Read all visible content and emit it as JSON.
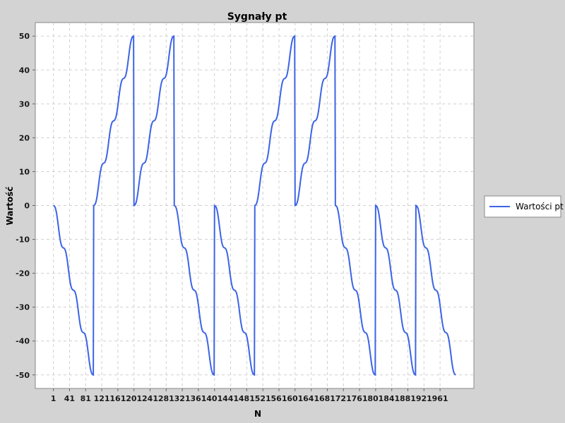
{
  "chart_data": {
    "type": "line",
    "title": "Sygnały pt",
    "xlabel": "N",
    "ylabel": "Wartość",
    "xlim": [
      1,
      1000
    ],
    "ylim": [
      -50,
      50
    ],
    "x_ticks": [
      1,
      41,
      81,
      121,
      161,
      201,
      241,
      281,
      321,
      361,
      401,
      441,
      481,
      521,
      561,
      601,
      641,
      681,
      721,
      761,
      801,
      841,
      881,
      921,
      961
    ],
    "y_ticks": [
      -50,
      -40,
      -30,
      -20,
      -10,
      0,
      10,
      20,
      30,
      40,
      50
    ],
    "grid": true,
    "legend_position": "right",
    "colors": {
      "series": "#3c64e6",
      "plot_bg": "#ffffff",
      "grid": "#d0d0d0",
      "frame": "#888888"
    },
    "series": [
      {
        "name": "Wartości pt",
        "points": [
          [
            1,
            0
          ],
          [
            100,
            -50
          ],
          [
            101,
            0
          ],
          [
            200,
            50
          ],
          [
            201,
            0
          ],
          [
            300,
            50
          ],
          [
            301,
            0
          ],
          [
            400,
            -50
          ],
          [
            401,
            0
          ],
          [
            500,
            -50
          ],
          [
            501,
            0
          ],
          [
            600,
            50
          ],
          [
            601,
            0
          ],
          [
            700,
            50
          ],
          [
            701,
            0
          ],
          [
            800,
            -50
          ],
          [
            801,
            0
          ],
          [
            900,
            -50
          ],
          [
            901,
            0
          ],
          [
            1000,
            -50
          ]
        ]
      }
    ]
  }
}
